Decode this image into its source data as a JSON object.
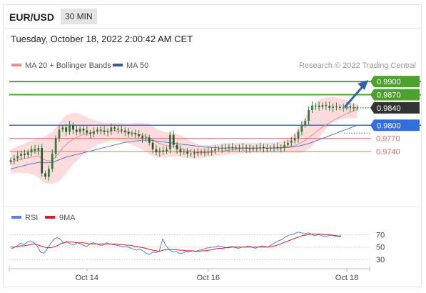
{
  "header": {
    "pair": "EUR/USD",
    "timeframe": "30 MIN"
  },
  "datetime": "Tuesday, October 18, 2022 2:00:42 AM CET",
  "legend": {
    "ma20_bollinger": "MA 20 + Bollinger Bands",
    "ma50": "MA 50",
    "credit": "Research © 2022 Trading Central",
    "rsi": "RSI",
    "rsi_ma": "9MA"
  },
  "colors": {
    "resistance": "#4ca22a",
    "support_red": "#e46a6a",
    "pivot_blue": "#2f6fe0",
    "current_price": "#333333",
    "bollinger_fill": "#fbd6d6",
    "ma20": "#ef8e8e",
    "ma50": "#5b79c0",
    "candle": "#2e7d3a",
    "arrow": "#2e63b8",
    "rsi_line": "#5b7fe0",
    "rsi_ma_line": "#d42020"
  },
  "chart_data": [
    {
      "type": "candlestick",
      "price_levels": [
        {
          "value": 0.99,
          "label": "0.9900",
          "kind": "resistance"
        },
        {
          "value": 0.987,
          "label": "0.9870",
          "kind": "resistance"
        },
        {
          "value": 0.984,
          "label": "0.9840",
          "kind": "current_price"
        },
        {
          "value": 0.98,
          "label": "0.9800",
          "kind": "pivot"
        },
        {
          "value": 0.977,
          "label": "0.9770",
          "kind": "support"
        },
        {
          "value": 0.974,
          "label": "0.9740",
          "kind": "support"
        }
      ],
      "ylim": [
        0.9645,
        0.9915
      ],
      "x_ticks": [
        {
          "label": "Oct 14",
          "t": 22
        },
        {
          "label": "Oct 16",
          "t": 57
        },
        {
          "label": "Oct 18",
          "t": 97
        }
      ],
      "xlim": [
        0,
        104
      ],
      "candles_close": [
        0.972,
        0.9724,
        0.973,
        0.9735,
        0.9732,
        0.9738,
        0.9745,
        0.9742,
        0.9748,
        0.969,
        0.9682,
        0.97,
        0.9735,
        0.977,
        0.979,
        0.9795,
        0.9785,
        0.98,
        0.979,
        0.9785,
        0.9792,
        0.9788,
        0.9783,
        0.978,
        0.9786,
        0.979,
        0.9788,
        0.9785,
        0.9786,
        0.9795,
        0.9792,
        0.979,
        0.9788,
        0.9785,
        0.978,
        0.9782,
        0.9779,
        0.9775,
        0.977,
        0.9772,
        0.976,
        0.9745,
        0.9738,
        0.9742,
        0.974,
        0.9745,
        0.9778,
        0.9755,
        0.9745,
        0.9738,
        0.974,
        0.9735,
        0.9735,
        0.9738,
        0.9737,
        0.9739,
        0.9738,
        0.974,
        0.9742,
        0.9745,
        0.9746,
        0.9748,
        0.9748,
        0.975,
        0.9749,
        0.9748,
        0.9748,
        0.9749,
        0.9747,
        0.9745,
        0.9748,
        0.9748,
        0.975,
        0.9748,
        0.9746,
        0.9748,
        0.975,
        0.9749,
        0.9748,
        0.9755,
        0.976,
        0.9765,
        0.977,
        0.9785,
        0.98,
        0.981,
        0.9835,
        0.9845,
        0.9845,
        0.9842,
        0.9846,
        0.9844,
        0.984,
        0.9843,
        0.9842,
        0.984,
        0.9841,
        0.9843,
        0.9841,
        0.984,
        0.984
      ],
      "ma20": [
        0.9715,
        0.9718,
        0.972,
        0.9722,
        0.9724,
        0.9725,
        0.9727,
        0.9728,
        0.973,
        0.9725,
        0.972,
        0.9718,
        0.972,
        0.9728,
        0.9738,
        0.9748,
        0.9756,
        0.9762,
        0.9768,
        0.9772,
        0.9776,
        0.9779,
        0.9781,
        0.9783,
        0.9784,
        0.9786,
        0.9787,
        0.9787,
        0.9786,
        0.9787,
        0.9788,
        0.9787,
        0.9786,
        0.9785,
        0.9784,
        0.9783,
        0.9781,
        0.9779,
        0.9777,
        0.9774,
        0.977,
        0.9766,
        0.9762,
        0.9758,
        0.9755,
        0.9753,
        0.9752,
        0.9751,
        0.975,
        0.9747,
        0.9745,
        0.9742,
        0.974,
        0.9738,
        0.9737,
        0.9737,
        0.9737,
        0.9737,
        0.9738,
        0.9739,
        0.974,
        0.9741,
        0.9742,
        0.9743,
        0.9744,
        0.9745,
        0.9746,
        0.9747,
        0.9747,
        0.9747,
        0.9748,
        0.9748,
        0.9748,
        0.9748,
        0.9748,
        0.9748,
        0.9748,
        0.9749,
        0.9749,
        0.975,
        0.9751,
        0.9752,
        0.9754,
        0.9757,
        0.9761,
        0.9765,
        0.9771,
        0.9778,
        0.9784,
        0.979,
        0.9796,
        0.9801,
        0.9806,
        0.9811,
        0.9815,
        0.9819,
        0.9823,
        0.9827,
        0.983,
        0.9833,
        0.9836
      ],
      "ma50": [
        0.97,
        0.9702,
        0.9704,
        0.9706,
        0.9708,
        0.971,
        0.9712,
        0.9713,
        0.9715,
        0.9715,
        0.9714,
        0.9714,
        0.9715,
        0.9718,
        0.9721,
        0.9724,
        0.9727,
        0.9729,
        0.9731,
        0.9733,
        0.9735,
        0.9737,
        0.9739,
        0.9741,
        0.9743,
        0.9745,
        0.9747,
        0.9749,
        0.9751,
        0.9753,
        0.9755,
        0.9757,
        0.9759,
        0.9761,
        0.9762,
        0.9763,
        0.9764,
        0.9765,
        0.9766,
        0.9766,
        0.9766,
        0.9765,
        0.9764,
        0.9763,
        0.9762,
        0.9761,
        0.976,
        0.9759,
        0.9758,
        0.9757,
        0.9756,
        0.9755,
        0.9754,
        0.9753,
        0.9752,
        0.9751,
        0.975,
        0.975,
        0.9749,
        0.9749,
        0.9748,
        0.9748,
        0.9748,
        0.9748,
        0.9748,
        0.9748,
        0.9748,
        0.9748,
        0.9748,
        0.9748,
        0.9748,
        0.9748,
        0.9748,
        0.9748,
        0.9748,
        0.9748,
        0.9748,
        0.9748,
        0.9748,
        0.9749,
        0.9749,
        0.975,
        0.9751,
        0.9752,
        0.9754,
        0.9756,
        0.9758,
        0.9761,
        0.9764,
        0.9767,
        0.977,
        0.9773,
        0.9776,
        0.9779,
        0.9782,
        0.9785,
        0.9788,
        0.9791,
        0.9794,
        0.9797,
        0.98
      ],
      "bb_upper": [
        0.9745,
        0.9748,
        0.9752,
        0.9755,
        0.9758,
        0.9762,
        0.9765,
        0.9768,
        0.977,
        0.9772,
        0.9775,
        0.978,
        0.9785,
        0.9795,
        0.9805,
        0.9815,
        0.9822,
        0.9826,
        0.9828,
        0.9828,
        0.9826,
        0.9822,
        0.9818,
        0.9815,
        0.9812,
        0.981,
        0.9808,
        0.9806,
        0.9805,
        0.9805,
        0.9806,
        0.9806,
        0.9805,
        0.9804,
        0.9804,
        0.9805,
        0.9806,
        0.9806,
        0.9806,
        0.9805,
        0.9803,
        0.9798,
        0.9792,
        0.9788,
        0.9785,
        0.9784,
        0.9783,
        0.9782,
        0.978,
        0.9777,
        0.9773,
        0.9768,
        0.9764,
        0.976,
        0.9757,
        0.9755,
        0.9754,
        0.9754,
        0.9755,
        0.9756,
        0.9757,
        0.9758,
        0.9759,
        0.976,
        0.976,
        0.976,
        0.976,
        0.976,
        0.976,
        0.976,
        0.976,
        0.976,
        0.976,
        0.976,
        0.976,
        0.976,
        0.976,
        0.9762,
        0.9764,
        0.9767,
        0.977,
        0.9775,
        0.9782,
        0.9792,
        0.9805,
        0.9818,
        0.983,
        0.984,
        0.985,
        0.9858,
        0.9862,
        0.9864,
        0.9865,
        0.9865,
        0.9864,
        0.9862,
        0.986,
        0.9857,
        0.9854,
        0.9851,
        0.9848
      ],
      "bb_lower": [
        0.969,
        0.969,
        0.969,
        0.969,
        0.969,
        0.969,
        0.9688,
        0.9685,
        0.968,
        0.9672,
        0.9668,
        0.9666,
        0.9666,
        0.9668,
        0.9672,
        0.968,
        0.969,
        0.97,
        0.971,
        0.9718,
        0.9726,
        0.9733,
        0.974,
        0.9745,
        0.975,
        0.9755,
        0.9758,
        0.976,
        0.9762,
        0.9764,
        0.9764,
        0.9763,
        0.9762,
        0.976,
        0.9758,
        0.9755,
        0.9752,
        0.9748,
        0.9744,
        0.974,
        0.9734,
        0.973,
        0.9727,
        0.9726,
        0.9726,
        0.9727,
        0.9728,
        0.9728,
        0.9728,
        0.9727,
        0.9726,
        0.9725,
        0.9724,
        0.9724,
        0.9724,
        0.9725,
        0.9726,
        0.9727,
        0.9728,
        0.9729,
        0.973,
        0.9731,
        0.9732,
        0.9733,
        0.9734,
        0.9735,
        0.9736,
        0.9736,
        0.9737,
        0.9737,
        0.9737,
        0.9737,
        0.9737,
        0.9737,
        0.9737,
        0.9737,
        0.9737,
        0.9737,
        0.9737,
        0.9737,
        0.9737,
        0.9737,
        0.9737,
        0.9737,
        0.9737,
        0.974,
        0.9745,
        0.9752,
        0.9762,
        0.9772,
        0.9782,
        0.9792,
        0.98,
        0.9806,
        0.981,
        0.9813,
        0.9815,
        0.9816,
        0.9816,
        0.9816,
        0.9816
      ]
    },
    {
      "type": "line",
      "series_names": [
        "RSI",
        "9MA"
      ],
      "y_ticks": [
        70,
        50,
        30
      ],
      "ylim": [
        22,
        82
      ],
      "rsi": [
        47,
        49,
        52,
        56,
        54,
        58,
        60,
        57,
        52,
        42,
        40,
        47,
        55,
        62,
        65,
        63,
        56,
        59,
        55,
        53,
        57,
        55,
        53,
        51,
        55,
        57,
        55,
        53,
        53,
        57,
        55,
        54,
        53,
        52,
        50,
        51,
        49,
        47,
        45,
        47,
        44,
        40,
        38,
        42,
        41,
        44,
        63,
        52,
        46,
        42,
        43,
        40,
        40,
        43,
        42,
        44,
        43,
        45,
        46,
        48,
        49,
        50,
        50,
        52,
        51,
        49,
        50,
        51,
        49,
        48,
        50,
        50,
        52,
        50,
        48,
        50,
        52,
        51,
        50,
        54,
        57,
        60,
        62,
        66,
        69,
        70,
        72,
        74,
        73,
        71,
        73,
        71,
        68,
        70,
        69,
        67,
        68,
        70,
        68,
        67,
        67
      ],
      "rsi_ma": [
        50,
        50,
        51,
        52,
        52,
        53,
        54,
        55,
        54,
        52,
        50,
        49,
        49,
        50,
        52,
        55,
        57,
        58,
        58,
        58,
        57,
        57,
        57,
        56,
        55,
        55,
        55,
        55,
        55,
        55,
        55,
        55,
        55,
        54,
        54,
        53,
        53,
        52,
        51,
        50,
        49,
        48,
        46,
        45,
        44,
        43,
        45,
        46,
        46,
        46,
        46,
        45,
        45,
        44,
        44,
        44,
        43,
        43,
        44,
        44,
        45,
        46,
        47,
        48,
        48,
        49,
        49,
        50,
        50,
        50,
        50,
        50,
        50,
        50,
        50,
        50,
        50,
        50,
        50,
        51,
        52,
        54,
        56,
        58,
        60,
        62,
        64,
        66,
        68,
        69,
        70,
        71,
        71,
        71,
        71,
        70,
        70,
        69,
        69,
        68,
        68
      ]
    }
  ]
}
